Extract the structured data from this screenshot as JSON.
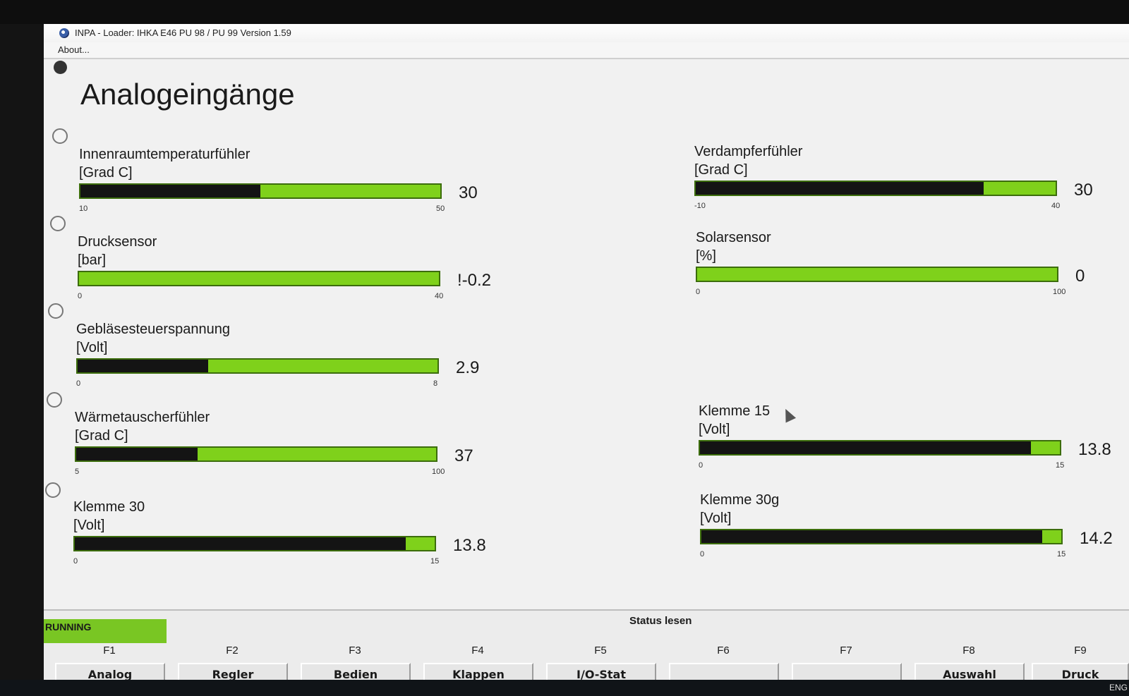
{
  "window": {
    "title": "INPA - Loader:  IHKA E46 PU 98 / PU 99 Version 1.59",
    "menu": [
      "About..."
    ]
  },
  "page": {
    "title": "Analogeingänge"
  },
  "gauges_left": [
    {
      "name": "Innenraumtemperaturfühler",
      "unit": "[Grad C]",
      "min": "10",
      "max": "50",
      "value": "30",
      "level": 0.5
    },
    {
      "name": "Drucksensor",
      "unit": "[bar]",
      "min": "0",
      "max": "40",
      "value": "!-0.2",
      "level": 0.0
    },
    {
      "name": "Gebläsesteuerspannung",
      "unit": "[Volt]",
      "min": "0",
      "max": "8",
      "value": "2.9",
      "level": 0.3625
    },
    {
      "name": "Wärmetauscherfühler",
      "unit": "[Grad C]",
      "min": "5",
      "max": "100",
      "value": "37",
      "level": 0.3368
    },
    {
      "name": "Klemme 30",
      "unit": "[Volt]",
      "min": "0",
      "max": "15",
      "value": "13.8",
      "level": 0.92
    }
  ],
  "gauges_right": [
    {
      "name": "Verdampferfühler",
      "unit": "[Grad C]",
      "min": "-10",
      "max": "40",
      "value": "30",
      "level": 0.8
    },
    {
      "name": "Solarsensor",
      "unit": "[%]",
      "min": "0",
      "max": "100",
      "value": "0",
      "level": 0.0
    },
    {
      "name": "Klemme 15",
      "unit": "[Volt]",
      "min": "0",
      "max": "15",
      "value": "13.8",
      "level": 0.92
    },
    {
      "name": "Klemme 30g",
      "unit": "[Volt]",
      "min": "0",
      "max": "15",
      "value": "14.2",
      "level": 0.9467
    }
  ],
  "status": {
    "running": "RUNNING",
    "label": "Status lesen"
  },
  "function_keys": [
    {
      "key": "F1",
      "label": "Analog"
    },
    {
      "key": "F2",
      "label": "Regler"
    },
    {
      "key": "F3",
      "label": "Bedien"
    },
    {
      "key": "F4",
      "label": "Klappen"
    },
    {
      "key": "F5",
      "label": "I/O-Stat"
    },
    {
      "key": "F6",
      "label": ""
    },
    {
      "key": "F7",
      "label": ""
    },
    {
      "key": "F8",
      "label": "Auswahl"
    },
    {
      "key": "F9",
      "label": "Druck"
    }
  ],
  "taskbar": {
    "lang": "ENG"
  },
  "colors": {
    "bar_green": "#7fd11b",
    "bar_fill": "#141414",
    "running_green": "#79c623"
  }
}
